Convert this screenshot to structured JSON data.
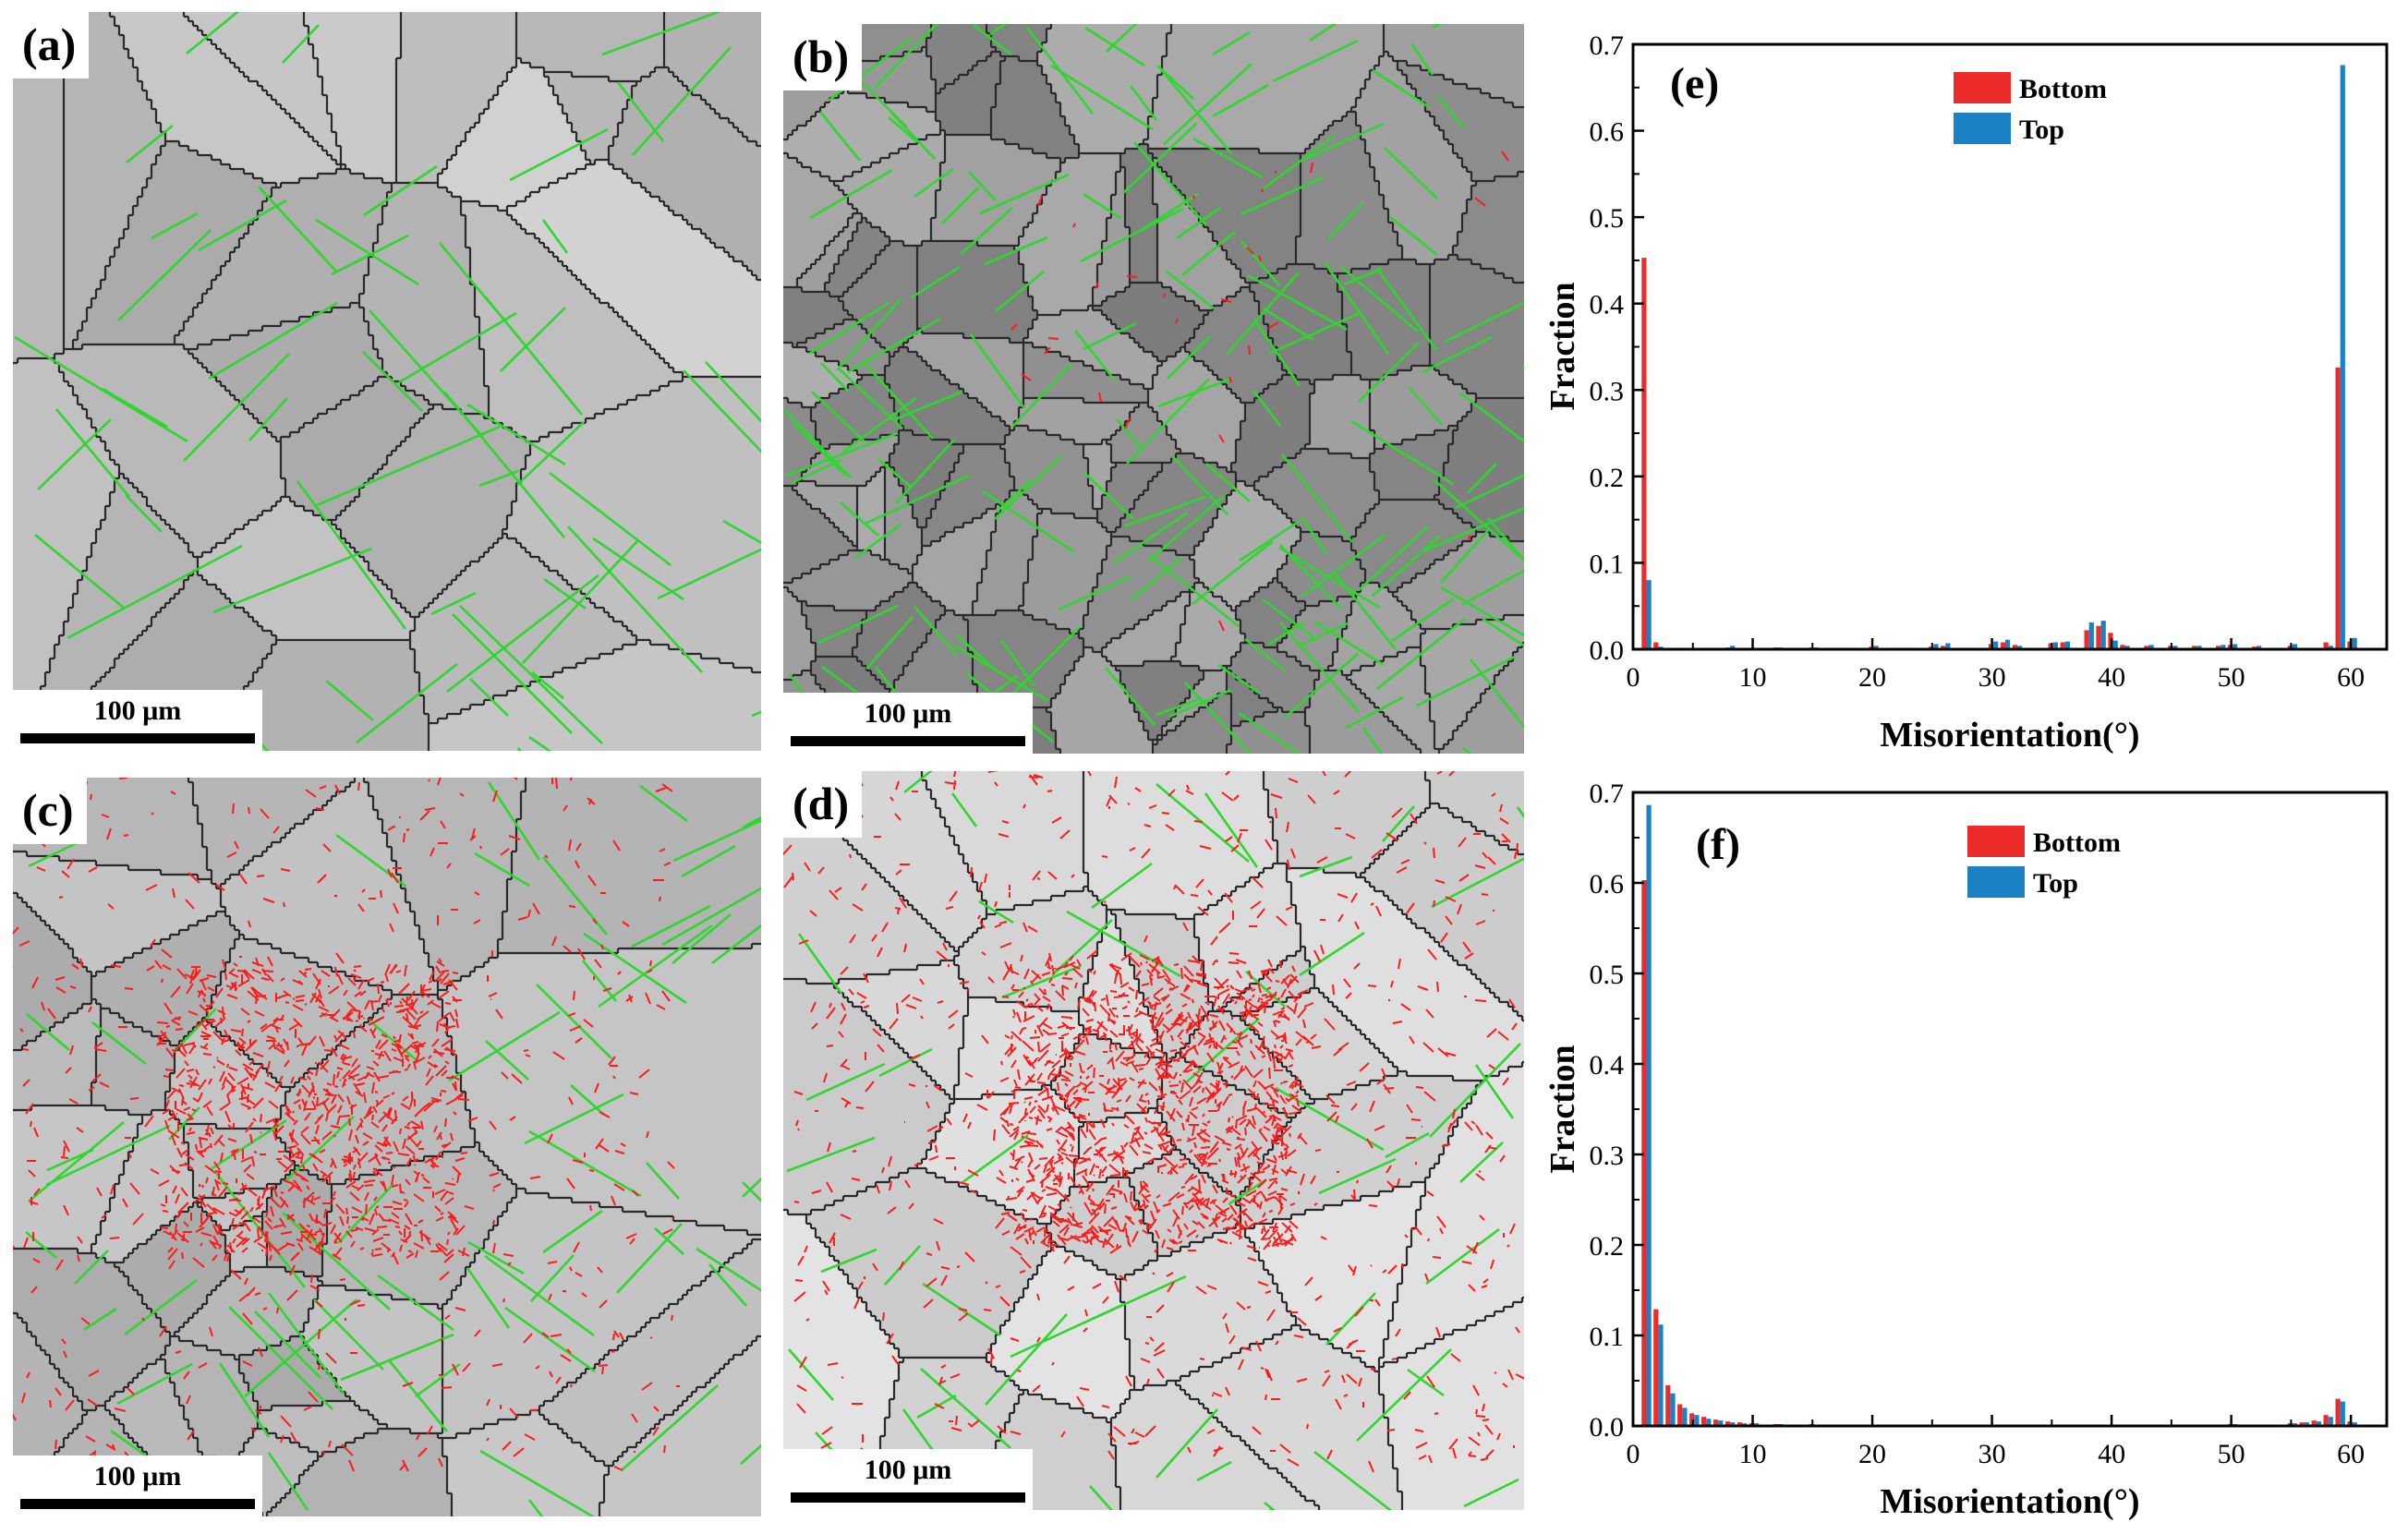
{
  "panels": {
    "a": {
      "label": "(a)",
      "scale": "100 μm"
    },
    "b": {
      "label": "(b)",
      "scale": "100 μm"
    },
    "c": {
      "label": "(c)",
      "scale": "100 μm"
    },
    "d": {
      "label": "(d)",
      "scale": "100 μm"
    }
  },
  "colors": {
    "bottom": "#ee2b2b",
    "top": "#1a82c4",
    "twin_boundary": "#2ed62e",
    "grain_boundary": "#2a2a2a",
    "low_angle": "#ff1a1a"
  },
  "chart_data": [
    {
      "type": "bar",
      "panel_label": "(e)",
      "xlabel": "Misorientation(°)",
      "ylabel": "Fraction",
      "xlim": [
        0,
        63
      ],
      "ylim": [
        0,
        0.7
      ],
      "xticks": [
        "0",
        "10",
        "20",
        "30",
        "40",
        "50",
        "60"
      ],
      "yticks": [
        "0.0",
        "0.1",
        "0.2",
        "0.3",
        "0.4",
        "0.5",
        "0.6",
        "0.7"
      ],
      "legend": "top-center",
      "series": [
        {
          "name": "Bottom",
          "x": [
            1,
            2,
            8,
            12,
            15,
            20,
            25,
            26,
            30,
            31,
            32,
            35,
            36,
            38,
            39,
            40,
            41,
            43,
            45,
            47,
            49,
            50,
            52,
            55,
            58,
            59,
            60
          ],
          "values": [
            0.453,
            0.008,
            0.002,
            0.002,
            0.002,
            0.003,
            0.003,
            0.004,
            0.006,
            0.008,
            0.005,
            0.007,
            0.008,
            0.022,
            0.027,
            0.019,
            0.005,
            0.004,
            0.004,
            0.004,
            0.004,
            0.005,
            0.003,
            0.004,
            0.008,
            0.326,
            0.009
          ]
        },
        {
          "name": "Top",
          "x": [
            1,
            2,
            8,
            12,
            15,
            20,
            25,
            26,
            30,
            31,
            32,
            35,
            36,
            38,
            39,
            40,
            41,
            43,
            45,
            47,
            49,
            50,
            52,
            55,
            58,
            59,
            60
          ],
          "values": [
            0.08,
            0.003,
            0.004,
            0.002,
            0.002,
            0.004,
            0.006,
            0.007,
            0.009,
            0.011,
            0.004,
            0.008,
            0.009,
            0.031,
            0.033,
            0.01,
            0.004,
            0.005,
            0.004,
            0.004,
            0.005,
            0.006,
            0.004,
            0.006,
            0.004,
            0.676,
            0.013
          ]
        }
      ]
    },
    {
      "type": "bar",
      "panel_label": "(f)",
      "xlabel": "Misorientation(°)",
      "ylabel": "Fraction",
      "xlim": [
        0,
        63
      ],
      "ylim": [
        0,
        0.7
      ],
      "xticks": [
        "0",
        "10",
        "20",
        "30",
        "40",
        "50",
        "60"
      ],
      "yticks": [
        "0.0",
        "0.1",
        "0.2",
        "0.3",
        "0.4",
        "0.5",
        "0.6",
        "0.7"
      ],
      "legend": "top-center",
      "series": [
        {
          "name": "Bottom",
          "x": [
            1,
            2,
            3,
            4,
            5,
            6,
            7,
            8,
            9,
            10,
            12,
            15,
            20,
            30,
            40,
            50,
            55,
            56,
            57,
            58,
            59,
            60
          ],
          "values": [
            0.603,
            0.129,
            0.045,
            0.024,
            0.014,
            0.01,
            0.007,
            0.005,
            0.004,
            0.003,
            0.002,
            0.002,
            0.001,
            0.001,
            0.001,
            0.002,
            0.003,
            0.004,
            0.006,
            0.012,
            0.03,
            0.005
          ]
        },
        {
          "name": "Top",
          "x": [
            1,
            2,
            3,
            4,
            5,
            6,
            7,
            8,
            9,
            10,
            12,
            15,
            20,
            30,
            40,
            50,
            55,
            56,
            57,
            58,
            59,
            60
          ],
          "values": [
            0.686,
            0.112,
            0.036,
            0.02,
            0.012,
            0.008,
            0.006,
            0.004,
            0.003,
            0.003,
            0.002,
            0.001,
            0.001,
            0.001,
            0.001,
            0.002,
            0.003,
            0.004,
            0.005,
            0.01,
            0.027,
            0.004
          ]
        }
      ]
    }
  ]
}
